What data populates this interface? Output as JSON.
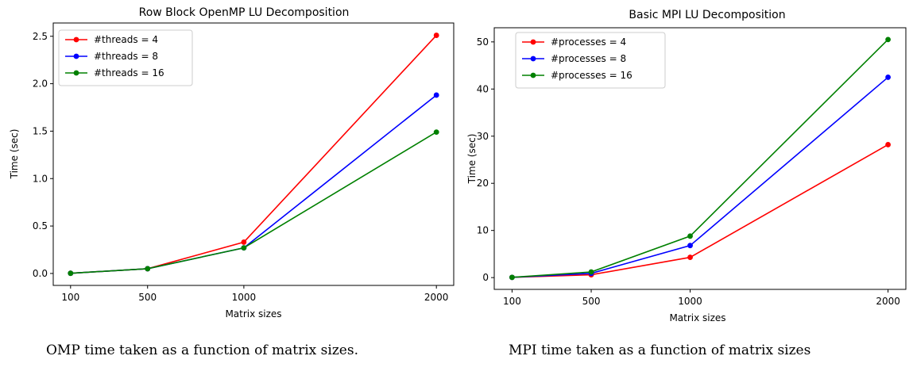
{
  "chart_data": [
    {
      "type": "line",
      "title": "Row Block OpenMP LU Decomposition",
      "xlabel": "Matrix sizes",
      "ylabel": "Time (sec)",
      "x": [
        100,
        500,
        1000,
        2000
      ],
      "xticks": [
        100,
        500,
        1000,
        2000
      ],
      "yticks": [
        0.0,
        0.5,
        1.0,
        1.5,
        2.0,
        2.5
      ],
      "ytick_labels": [
        "0.0",
        "0.5",
        "1.0",
        "1.5",
        "2.0",
        "2.5"
      ],
      "xlim": [
        10,
        2090
      ],
      "ylim": [
        -0.126,
        2.64
      ],
      "legend_position": "top-left",
      "grid": false,
      "series": [
        {
          "name": "#threads = 4",
          "color": "#ff0000",
          "values": [
            0.002,
            0.05,
            0.33,
            2.51
          ]
        },
        {
          "name": "#threads = 8",
          "color": "#0000ff",
          "values": [
            0.002,
            0.05,
            0.27,
            1.88
          ]
        },
        {
          "name": "#threads = 16",
          "color": "#008000",
          "values": [
            0.002,
            0.05,
            0.27,
            1.49
          ]
        }
      ]
    },
    {
      "type": "line",
      "title": "Basic MPI LU Decomposition",
      "xlabel": "Matrix sizes",
      "ylabel": "Time (sec)",
      "x": [
        100,
        500,
        1000,
        2000
      ],
      "xticks": [
        100,
        500,
        1000,
        2000
      ],
      "yticks": [
        0,
        10,
        20,
        30,
        40,
        50
      ],
      "ytick_labels": [
        "0",
        "10",
        "20",
        "30",
        "40",
        "50"
      ],
      "xlim": [
        10,
        2090
      ],
      "ylim": [
        -2.5,
        53
      ],
      "legend_position": "top-left",
      "grid": false,
      "series": [
        {
          "name": "#processes = 4",
          "color": "#ff0000",
          "values": [
            0.05,
            0.6,
            4.3,
            28.2
          ]
        },
        {
          "name": "#processes = 8",
          "color": "#0000ff",
          "values": [
            0.05,
            0.9,
            6.8,
            42.5
          ]
        },
        {
          "name": "#processes = 16",
          "color": "#008000",
          "values": [
            0.05,
            1.2,
            8.8,
            50.5
          ]
        }
      ]
    }
  ],
  "captions": [
    "OMP time taken as a function of matrix sizes.",
    "MPI time taken as a function of matrix sizes"
  ]
}
